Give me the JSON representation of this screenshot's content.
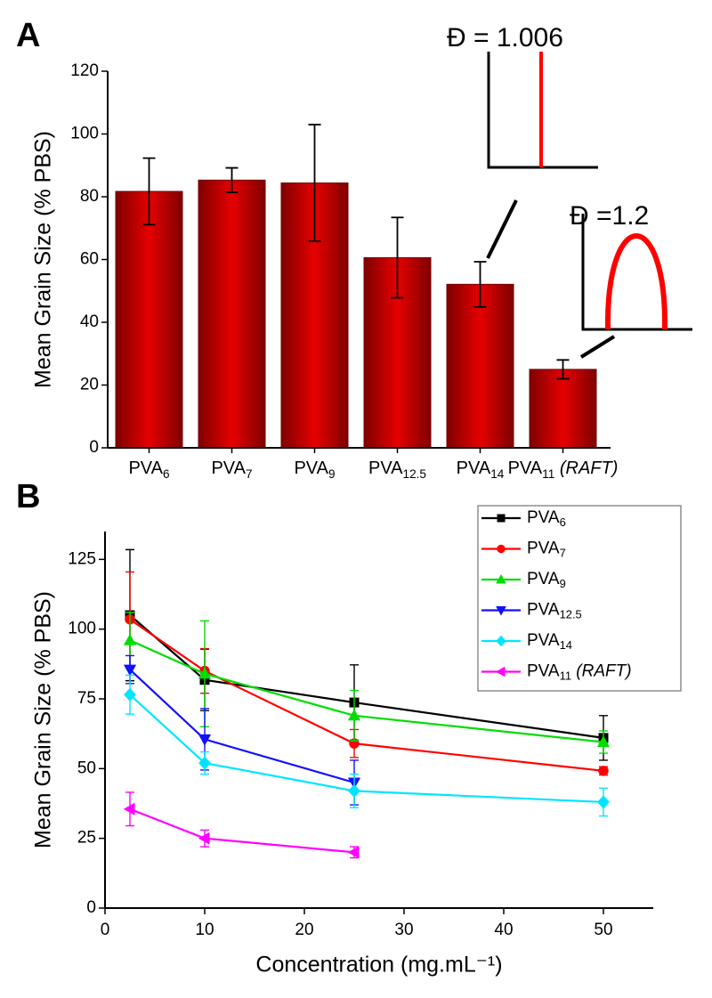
{
  "chart_data": [
    {
      "type": "bar",
      "panel_label": "A",
      "ylabel": "Mean Grain Size (% PBS)",
      "categories": [
        "PVA6",
        "PVA7",
        "PVA9",
        "PVA12.5",
        "PVA14",
        "PVA11 (RAFT)"
      ],
      "values": [
        81.7,
        85.3,
        84.4,
        60.6,
        52.1,
        25.0
      ],
      "errors": [
        10.6,
        3.9,
        18.6,
        12.8,
        7.2,
        3.0
      ],
      "color": "#e60000",
      "ylim": [
        0,
        120
      ],
      "yticks": [
        0,
        20,
        40,
        60,
        80,
        100,
        120
      ],
      "annotations": [
        "Đ = 1.006",
        "Đ =1.2"
      ]
    },
    {
      "type": "line",
      "panel_label": "B",
      "xlabel": "Concentration (mg.mL⁻¹)",
      "ylabel": "Mean Grain Size (% PBS)",
      "x": [
        2.5,
        10,
        25,
        50
      ],
      "series": [
        {
          "name": "PVA6",
          "color": "#000000",
          "marker": "square",
          "values": [
            105,
            81.8,
            73.7,
            61.0
          ],
          "errors": [
            23.5,
            11,
            13.5,
            8
          ]
        },
        {
          "name": "PVA7",
          "color": "#ff0000",
          "marker": "circle",
          "values": [
            103.5,
            85,
            59,
            49.2
          ],
          "errors": [
            17,
            8,
            5,
            1.5
          ]
        },
        {
          "name": "PVA9",
          "color": "#00dd00",
          "marker": "triangle-up",
          "values": [
            96,
            84,
            69,
            59.5
          ],
          "errors": [
            10,
            19,
            9,
            4
          ]
        },
        {
          "name": "PVA12.5",
          "color": "#1010ff",
          "marker": "triangle-down",
          "values": [
            85.5,
            60.5,
            45,
            null
          ],
          "errors": [
            5,
            11,
            8,
            null
          ]
        },
        {
          "name": "PVA14",
          "color": "#00e5ff",
          "marker": "diamond",
          "values": [
            76.5,
            52,
            42,
            38
          ],
          "errors": [
            7,
            4,
            6,
            5
          ]
        },
        {
          "name": "PVA11 (RAFT)",
          "color": "#ff00ff",
          "marker": "triangle-left",
          "values": [
            35.5,
            25,
            20,
            null
          ],
          "errors": [
            6,
            3,
            2,
            null
          ]
        }
      ],
      "xlim": [
        0,
        55
      ],
      "xticks": [
        0,
        10,
        20,
        30,
        40,
        50
      ],
      "ylim": [
        0,
        135
      ],
      "yticks": [
        0,
        25,
        50,
        75,
        100,
        125
      ],
      "legend": "upper right"
    }
  ]
}
